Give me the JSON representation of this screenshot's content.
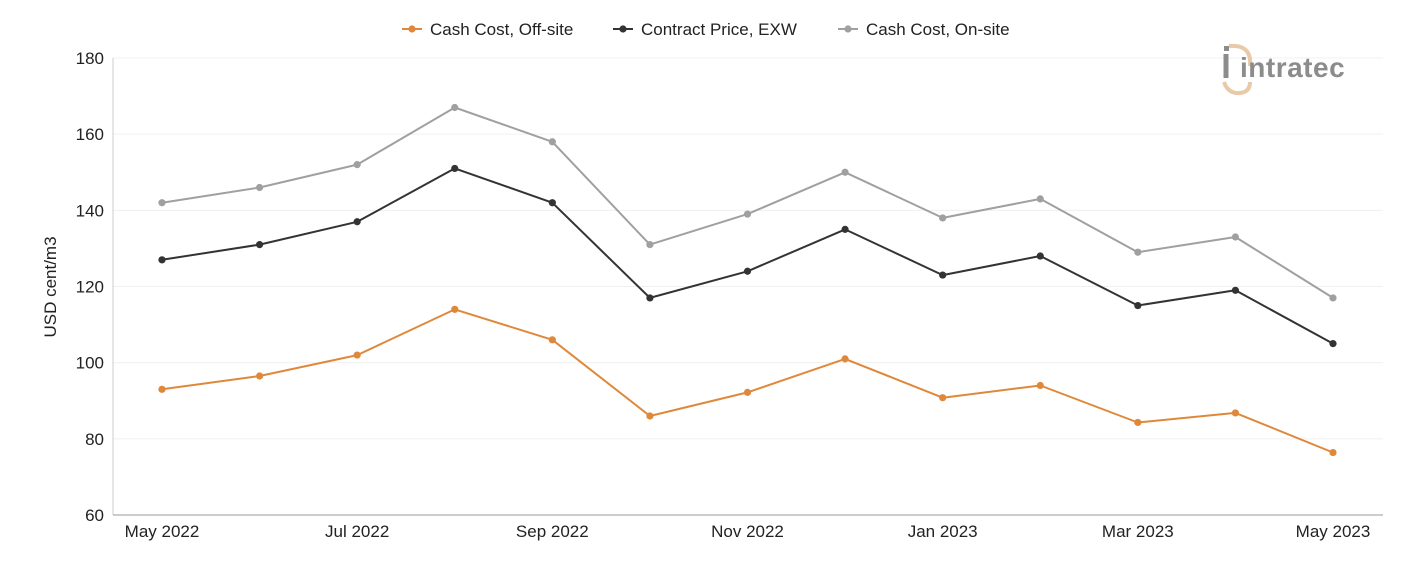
{
  "chart_data": {
    "type": "line",
    "title": "",
    "xlabel": "",
    "ylabel": "USD cent/m3",
    "ylim": [
      60,
      180
    ],
    "yticks": [
      60,
      80,
      100,
      120,
      140,
      160,
      180
    ],
    "grid": true,
    "legend_position": "top-center",
    "x": [
      "May 2022",
      "Jun 2022",
      "Jul 2022",
      "Aug 2022",
      "Sep 2022",
      "Oct 2022",
      "Nov 2022",
      "Dec 2022",
      "Jan 2023",
      "Feb 2023",
      "Mar 2023",
      "Apr 2023",
      "May 2023"
    ],
    "x_tick_labels": [
      "May 2022",
      "",
      "Jul 2022",
      "",
      "Sep 2022",
      "",
      "Nov 2022",
      "",
      "Jan 2023",
      "",
      "Mar 2023",
      "",
      "May 2023"
    ],
    "series": [
      {
        "name": "Cash Cost, Off-site",
        "color": "#e0883a",
        "values": [
          93,
          96.5,
          102,
          114,
          106,
          86,
          92.2,
          101,
          90.8,
          94,
          84.3,
          86.8,
          76.4
        ]
      },
      {
        "name": "Contract Price, EXW",
        "color": "#333333",
        "values": [
          127,
          131,
          137,
          151,
          142,
          117,
          124,
          135,
          123,
          128,
          115,
          119,
          105
        ]
      },
      {
        "name": "Cash Cost, On-site",
        "color": "#a0a0a0",
        "values": [
          142,
          146,
          152,
          167,
          158,
          131,
          139,
          150,
          138,
          143,
          129,
          133,
          117
        ]
      }
    ]
  },
  "watermark": {
    "text": "intratec",
    "icon": "intratec-logo-icon"
  }
}
